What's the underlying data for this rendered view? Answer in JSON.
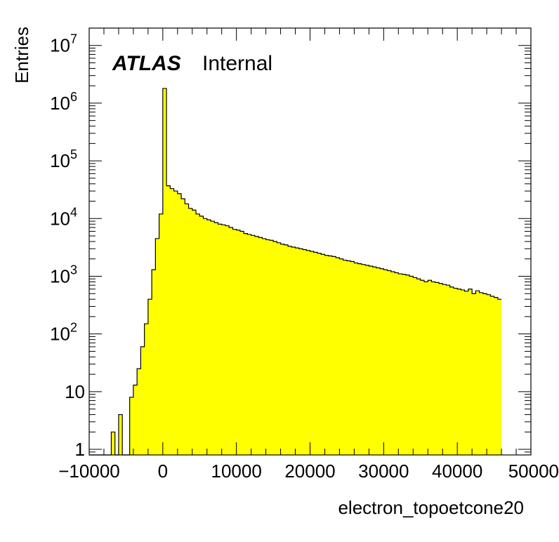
{
  "chart_data": {
    "type": "bar",
    "histogram": true,
    "title": "",
    "xlabel": "electron_topoetcone20",
    "ylabel": "Entries",
    "xlim": [
      -10000,
      50000
    ],
    "ylim": [
      0.8,
      20000000
    ],
    "yscale": "log",
    "bin_width": 500,
    "x_start": -10000,
    "fill_color": "#ffff00",
    "line_color": "#000000",
    "x_tick_labels": [
      "−10000",
      "0",
      "10000",
      "20000",
      "30000",
      "40000",
      "50000"
    ],
    "x_tick_values": [
      -10000,
      0,
      10000,
      20000,
      30000,
      40000,
      50000
    ],
    "y_tick_labels": [
      {
        "base": "1",
        "exp": ""
      },
      {
        "base": "10",
        "exp": ""
      },
      {
        "base": "10",
        "exp": "2"
      },
      {
        "base": "10",
        "exp": "3"
      },
      {
        "base": "10",
        "exp": "4"
      },
      {
        "base": "10",
        "exp": "5"
      },
      {
        "base": "10",
        "exp": "6"
      },
      {
        "base": "10",
        "exp": "7"
      }
    ],
    "y_tick_values": [
      1,
      10,
      100,
      1000,
      10000,
      100000,
      1000000,
      10000000
    ],
    "annotations": {
      "atlas": "ATLAS",
      "status": "Internal"
    },
    "values": [
      0,
      0,
      0,
      0,
      0,
      0,
      2,
      0,
      4,
      0,
      0,
      8,
      13,
      25,
      60,
      150,
      400,
      1300,
      4500,
      12000,
      1800000,
      37000,
      33000,
      30000,
      27000,
      22000,
      18000,
      15000,
      14000,
      12000,
      11000,
      10000,
      9500,
      9000,
      8500,
      8000,
      7800,
      7500,
      7000,
      6500,
      6300,
      6000,
      5500,
      5300,
      5100,
      4900,
      4700,
      4500,
      4300,
      4200,
      4000,
      3800,
      3600,
      3500,
      3300,
      3200,
      3100,
      3000,
      2900,
      2800,
      2700,
      2600,
      2500,
      2400,
      2300,
      2250,
      2200,
      2100,
      2000,
      1900,
      1850,
      1800,
      1700,
      1650,
      1600,
      1550,
      1500,
      1450,
      1400,
      1350,
      1300,
      1250,
      1200,
      1150,
      1100,
      1080,
      1050,
      1000,
      950,
      900,
      850,
      800,
      850,
      800,
      780,
      750,
      720,
      700,
      650,
      620,
      600,
      580,
      550,
      600,
      500,
      560,
      520,
      500,
      480,
      450,
      430,
      400
    ]
  }
}
